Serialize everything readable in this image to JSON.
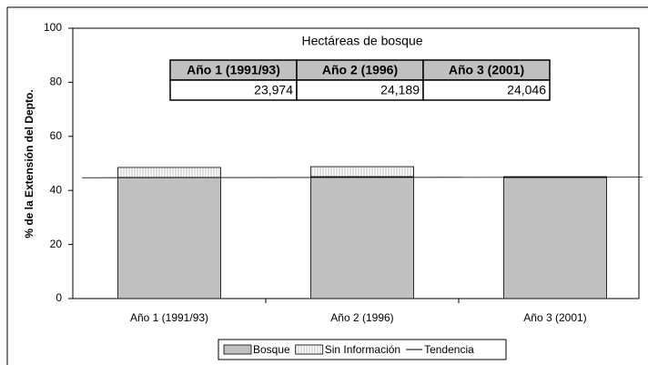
{
  "chart_data": {
    "type": "bar",
    "stacked": true,
    "title": "Hectáreas de bosque",
    "y_label": "% de la Extensión del Depto.",
    "categories": [
      "Año 1 (1991/93)",
      "Año 2 (1996)",
      "Año 3 (2001)"
    ],
    "series": [
      {
        "name": "Bosque",
        "color": "#c0c0c0",
        "values": [
          44.8,
          45.1,
          44.8
        ]
      },
      {
        "name": "Sin Información",
        "color": "#ffffff",
        "values": [
          3.7,
          3.7,
          0.3
        ]
      },
      {
        "name": "Tendencia",
        "color": "#000000",
        "kind": "line",
        "values": [
          44.7,
          44.8,
          44.9
        ]
      }
    ],
    "ylim": [
      0,
      100
    ],
    "yticks": [
      0,
      20,
      40,
      60,
      80,
      100
    ],
    "table": {
      "header": [
        "Año 1 (1991/93)",
        "Año 2 (1996)",
        "Año 3 (2001)"
      ],
      "rows": [
        [
          "23,974",
          "24,189",
          "24,046"
        ]
      ]
    },
    "legend": "bottom"
  }
}
